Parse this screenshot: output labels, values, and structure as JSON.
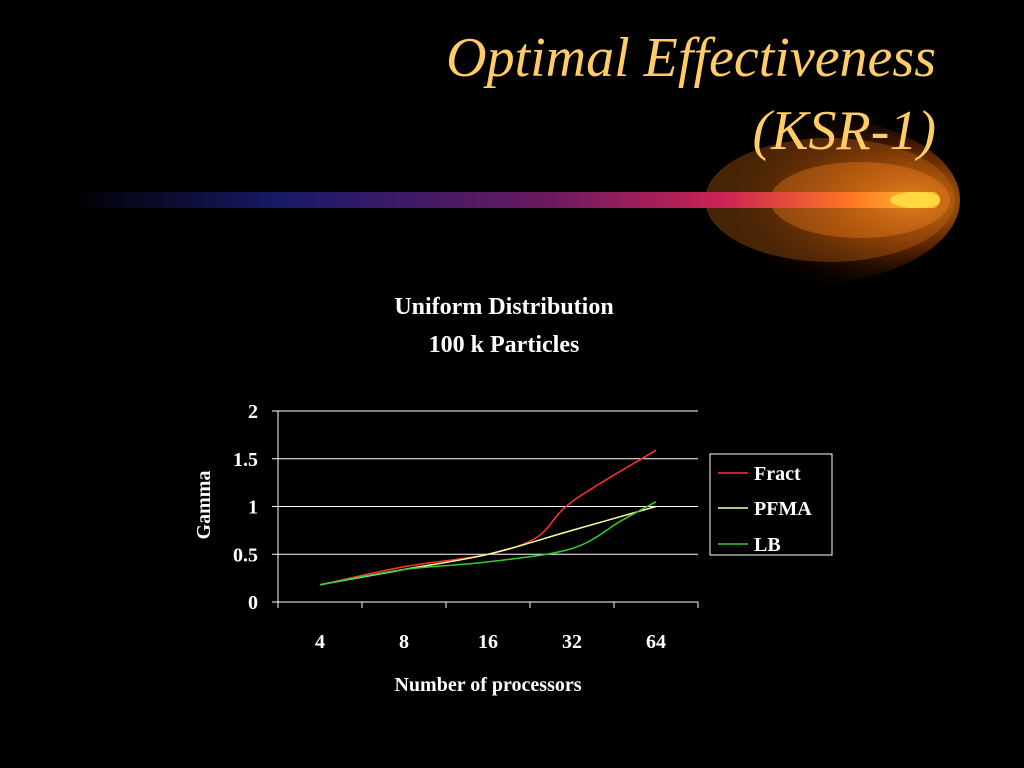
{
  "slide": {
    "title_line1": "Optimal Effectiveness",
    "title_line2": "(KSR-1)"
  },
  "colors": {
    "background": "#000000",
    "title": "#FFCC66",
    "grid": "#FFFFFF",
    "text": "#FFFFFF"
  },
  "chart_data": {
    "type": "line",
    "title": "Uniform Distribution",
    "subtitle": "100 k Particles",
    "xlabel": "Number of processors",
    "ylabel": "Gamma",
    "categories": [
      "4",
      "8",
      "16",
      "32",
      "64"
    ],
    "ylim": [
      0,
      2
    ],
    "yticks": [
      "0",
      "0.5",
      "1",
      "1.5",
      "2"
    ],
    "grid": true,
    "legend_position": "right",
    "series": [
      {
        "name": "Fract",
        "color": "#FF3333",
        "x": [
          4,
          8,
          16,
          24,
          32,
          64
        ],
        "y": [
          0.18,
          0.37,
          0.5,
          0.68,
          1.05,
          1.59
        ]
      },
      {
        "name": "PFMA",
        "color": "#FFFF99",
        "x": [
          4,
          8,
          16,
          32,
          64
        ],
        "y": [
          0.18,
          0.34,
          0.5,
          0.75,
          1.0
        ]
      },
      {
        "name": "LB",
        "color": "#33CC33",
        "x": [
          4,
          8,
          16,
          32,
          48,
          64
        ],
        "y": [
          0.18,
          0.34,
          0.42,
          0.56,
          0.85,
          1.05
        ]
      }
    ]
  }
}
